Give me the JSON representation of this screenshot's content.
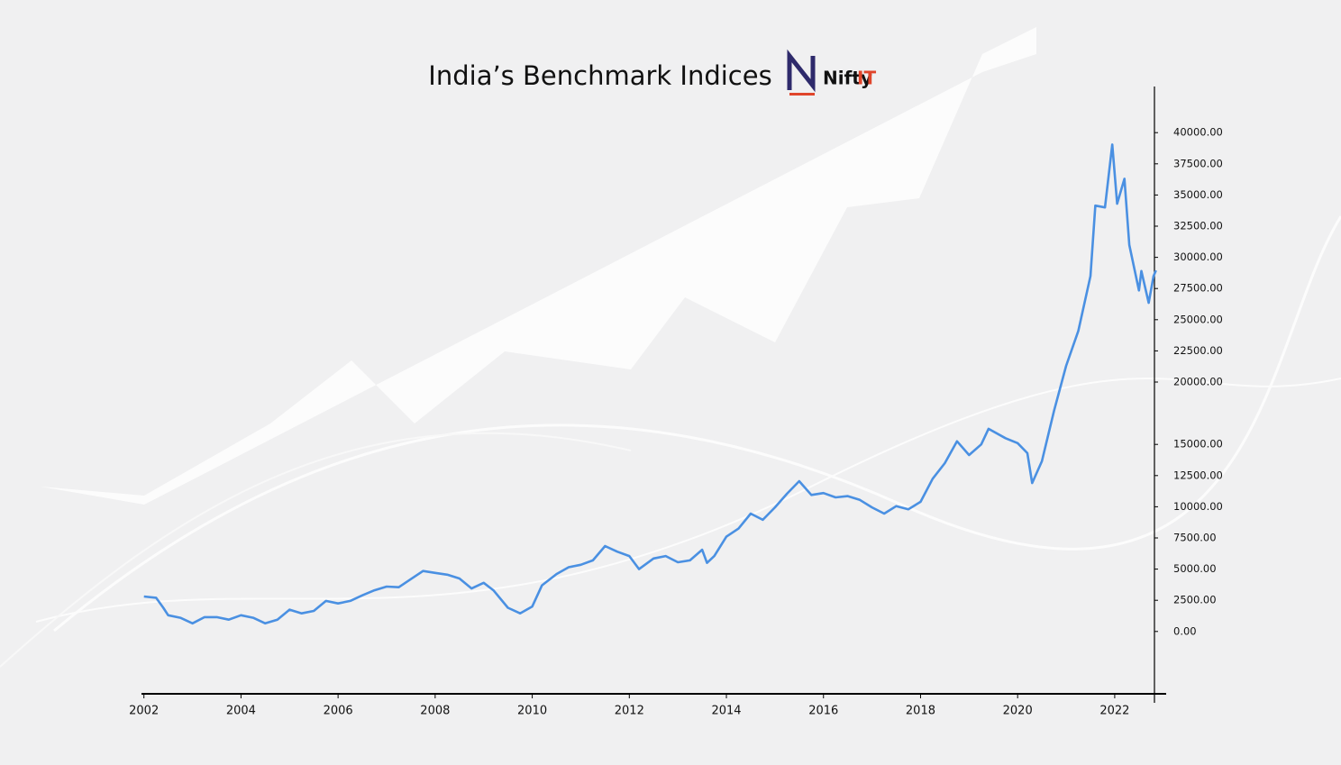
{
  "chart_data": {
    "type": "line",
    "title": "India’s Benchmark Indices",
    "logo": [
      "Nifty",
      "IT"
    ],
    "x": [
      2002.0,
      2002.25,
      2002.4,
      2002.5,
      2002.75,
      2003.0,
      2003.25,
      2003.5,
      2003.75,
      2004.0,
      2004.25,
      2004.5,
      2004.75,
      2005.0,
      2005.25,
      2005.5,
      2005.75,
      2006.0,
      2006.25,
      2006.5,
      2006.75,
      2007.0,
      2007.25,
      2007.5,
      2007.75,
      2008.0,
      2008.25,
      2008.5,
      2008.75,
      2009.0,
      2009.2,
      2009.5,
      2009.75,
      2010.0,
      2010.2,
      2010.5,
      2010.75,
      2011.0,
      2011.25,
      2011.5,
      2011.75,
      2012.0,
      2012.2,
      2012.5,
      2012.75,
      2013.0,
      2013.25,
      2013.5,
      2013.6,
      2013.75,
      2014.0,
      2014.25,
      2014.5,
      2014.75,
      2015.0,
      2015.25,
      2015.5,
      2015.75,
      2016.0,
      2016.25,
      2016.5,
      2016.75,
      2017.0,
      2017.25,
      2017.5,
      2017.75,
      2018.0,
      2018.25,
      2018.5,
      2018.75,
      2019.0,
      2019.25,
      2019.4,
      2019.75,
      2020.0,
      2020.2,
      2020.3,
      2020.5,
      2020.75,
      2021.0,
      2021.25,
      2021.5,
      2021.6,
      2021.8,
      2021.95,
      2022.05,
      2022.2,
      2022.3,
      2022.5,
      2022.55,
      2022.7,
      2022.8,
      2022.85
    ],
    "series": [
      {
        "color": "#4a90e2",
        "values": [
          2800,
          2700,
          1900,
          1300,
          1100,
          650,
          1150,
          1150,
          950,
          1300,
          1100,
          650,
          950,
          1750,
          1450,
          1650,
          2450,
          2250,
          2450,
          2900,
          3300,
          3600,
          3550,
          4200,
          4850,
          4700,
          4550,
          4250,
          3450,
          3900,
          3300,
          1900,
          1450,
          2000,
          3700,
          4600,
          5150,
          5350,
          5700,
          6850,
          6400,
          6050,
          5000,
          5850,
          6050,
          5550,
          5700,
          6550,
          5500,
          6050,
          7600,
          8250,
          9450,
          8950,
          9950,
          11050,
          12050,
          10950,
          11100,
          10750,
          10850,
          10550,
          9950,
          9450,
          10050,
          9800,
          10400,
          12250,
          13500,
          15250,
          14150,
          15000,
          16250,
          15500,
          15100,
          14300,
          11900,
          13650,
          17700,
          21300,
          24100,
          28500,
          34150,
          34000,
          39050,
          34300,
          36300,
          31000,
          27350,
          28900,
          26350,
          28500,
          28950
        ]
      }
    ],
    "xlim": [
      2001.95,
      2023.06
    ],
    "ylim": [
      -5000,
      43700
    ],
    "xticks": [
      2002,
      2004,
      2006,
      2008,
      2010,
      2012,
      2014,
      2016,
      2018,
      2020,
      2022
    ],
    "yticks": [
      {
        "value": 0,
        "label": "0.00"
      },
      {
        "value": 2500,
        "label": "2500.00"
      },
      {
        "value": 5000,
        "label": "5000.00"
      },
      {
        "value": 7500,
        "label": "7500.00"
      },
      {
        "value": 10000,
        "label": "10000.00"
      },
      {
        "value": 12500,
        "label": "12500.00"
      },
      {
        "value": 15000,
        "label": "15000.00"
      },
      {
        "value": 20000,
        "label": "20000.00"
      },
      {
        "value": 22500,
        "label": "22500.00"
      },
      {
        "value": 25000,
        "label": "25000.00"
      },
      {
        "value": 27500,
        "label": "27500.00"
      },
      {
        "value": 30000,
        "label": "30000.00"
      },
      {
        "value": 32500,
        "label": "32500.00"
      },
      {
        "value": 35000,
        "label": "35000.00"
      },
      {
        "value": 37500,
        "label": "37500.00"
      },
      {
        "value": 40000,
        "label": "40000.00"
      }
    ],
    "y_axis_side": "right"
  }
}
